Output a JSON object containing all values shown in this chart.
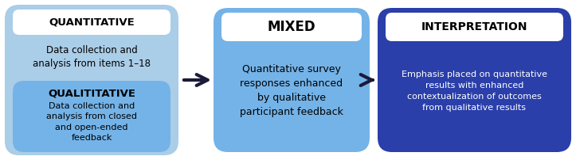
{
  "bg_color": "#ffffff",
  "outer_box_color": "#aacde8",
  "quant_title_box_color": "#ffffff",
  "qual_box_color": "#74b3e8",
  "mixed_box_color": "#74b3e8",
  "mixed_title_box_color": "#ffffff",
  "interp_box_color": "#2a3faa",
  "interp_title_box_color": "#ffffff",
  "arrow_color": "#1a1a3a",
  "quant_title": "QUANTITATIVE",
  "quant_body": "Data collection and\nanalysis from items 1–18",
  "qual_title": "QUALITITATIVE",
  "qual_body": "Data collection and\nanalysis from closed\nand open-ended\nfeedback",
  "mixed_title": "MIXED",
  "mixed_body": "Quantitative survey\nresponses enhanced\nby qualitative\nparticipant feedback",
  "interp_title": "INTERPRETATION",
  "interp_body": "Emphasis placed on quantitative\nresults with enhanced\ncontextualization of outcomes\nfrom qualitative results"
}
